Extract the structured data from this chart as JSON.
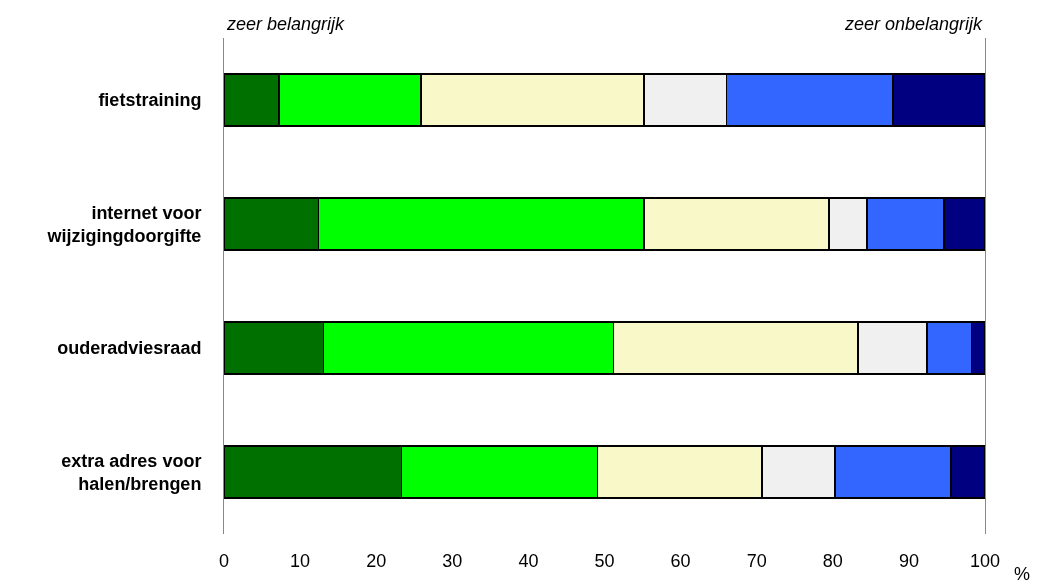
{
  "chart_data": {
    "type": "bar",
    "orientation": "horizontal",
    "stacked": true,
    "categories": [
      "fietstraining",
      "internet voor wijzigingdoorgifte",
      "ouderadviesraad",
      "extra adres voor halen/brengen"
    ],
    "series": [
      {
        "color": "#007000",
        "values": [
          7.2,
          12.4,
          13.1,
          23.3
        ]
      },
      {
        "color": "#00ff00",
        "values": [
          18.7,
          42.8,
          38.1,
          25.8
        ]
      },
      {
        "color": "#f8f8c8",
        "values": [
          29.3,
          24.3,
          32.1,
          21.6
        ]
      },
      {
        "color": "#f0f0f0",
        "values": [
          10.8,
          5.0,
          9.1,
          9.6
        ]
      },
      {
        "color": "#3366ff",
        "values": [
          21.9,
          10.1,
          5.8,
          15.2
        ]
      },
      {
        "color": "#000080",
        "values": [
          12.1,
          5.4,
          1.8,
          4.5
        ]
      }
    ],
    "xlim": [
      0,
      100
    ],
    "xticks": [
      0,
      10,
      20,
      30,
      40,
      50,
      60,
      70,
      80,
      90,
      100
    ],
    "xlabel": "%",
    "annotations": [
      "zeer belangrijk",
      "zeer onbelangrijk"
    ],
    "legend": false
  }
}
